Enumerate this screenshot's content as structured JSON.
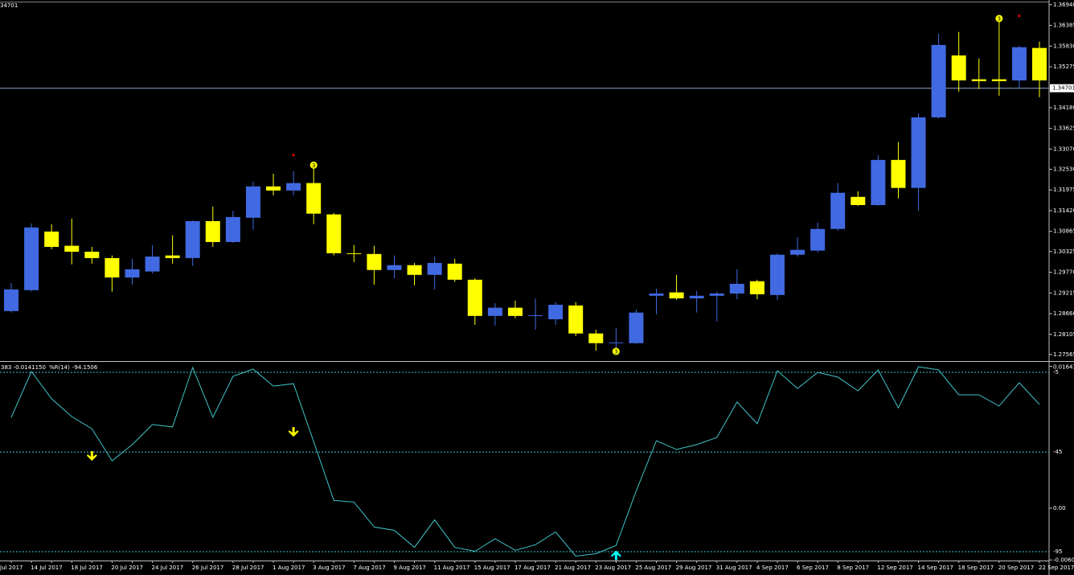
{
  "chart_data": [
    {
      "type": "candlestick",
      "header_text": "34701",
      "categories": [
        "Jul 2017",
        "14 Jul 2017",
        null,
        "18 Jul 2017",
        null,
        "20 Jul 2017",
        null,
        "24 Jul 2017",
        null,
        "26 Jul 2017",
        null,
        "28 Jul 2017",
        null,
        "1 Aug 2017",
        null,
        "3 Aug 2017",
        null,
        "7 Aug 2017",
        null,
        "9 Aug 2017",
        null,
        "11 Aug 2017",
        null,
        "15 Aug 2017",
        null,
        "17 Aug 2017",
        null,
        "21 Aug 2017",
        null,
        "23 Aug 2017",
        null,
        "25 Aug 2017",
        null,
        "29 Aug 2017",
        null,
        "31 Aug 2017",
        null,
        "4 Sep 2017",
        null,
        "6 Sep 2017",
        null,
        "8 Sep 2017",
        null,
        "12 Sep 2017",
        null,
        "14 Sep 2017",
        null,
        "18 Sep 2017",
        null,
        "20 Sep 2017",
        null,
        "22 Sep 2017"
      ],
      "open": [
        1.2873,
        1.2929,
        1.3086,
        1.3048,
        1.3032,
        1.3015,
        1.2963,
        1.2979,
        1.3022,
        1.3015,
        1.3114,
        1.3058,
        1.3123,
        1.3207,
        1.3196,
        1.3216,
        1.3132,
        1.3028,
        1.3026,
        1.2983,
        1.2996,
        1.297,
        1.3,
        1.2957,
        1.286,
        1.2882,
        1.286,
        1.2851,
        1.2888,
        1.2813,
        1.2787,
        1.2787,
        1.2914,
        1.2923,
        1.2907,
        1.2914,
        1.292,
        1.2953,
        1.2916,
        1.3024,
        1.3035,
        1.3093,
        1.3179,
        1.3157,
        1.3278,
        1.3203,
        1.3392,
        1.3558,
        1.3494,
        1.3494,
        1.3491,
        1.3578
      ],
      "high": [
        1.2948,
        1.3108,
        1.3106,
        1.3121,
        1.3045,
        1.3022,
        1.3013,
        1.305,
        1.3076,
        1.3116,
        1.3153,
        1.3142,
        1.322,
        1.3241,
        1.3248,
        1.3254,
        1.3136,
        1.305,
        1.3048,
        1.3022,
        1.3002,
        1.3019,
        1.3013,
        1.2961,
        1.2894,
        1.2901,
        1.2907,
        1.2897,
        1.2897,
        1.2823,
        1.2828,
        1.2877,
        1.2933,
        1.297,
        1.2927,
        1.2925,
        1.2985,
        1.2957,
        1.3028,
        1.3071,
        1.311,
        1.3216,
        1.3194,
        1.3291,
        1.3326,
        1.3403,
        1.3616,
        1.3621,
        1.355,
        1.366,
        1.3584,
        1.3595
      ],
      "low": [
        1.2869,
        1.2925,
        1.3039,
        1.2998,
        1.3,
        1.2925,
        1.2944,
        1.2974,
        1.3,
        1.2994,
        1.3045,
        1.3056,
        1.3091,
        1.3183,
        1.3183,
        1.3106,
        1.3022,
        1.3004,
        1.2944,
        1.2961,
        1.2942,
        1.2931,
        1.2951,
        1.2836,
        1.2834,
        1.2854,
        1.2823,
        1.2836,
        1.2806,
        1.2767,
        1.277,
        1.2785,
        1.2864,
        1.2903,
        1.2869,
        1.2845,
        1.2905,
        1.2905,
        1.2903,
        1.3019,
        1.303,
        1.3088,
        1.3155,
        1.3155,
        1.3175,
        1.3142,
        1.3388,
        1.3461,
        1.3468,
        1.345,
        1.347,
        1.3446
      ],
      "close": [
        1.2931,
        1.3097,
        1.3045,
        1.3032,
        1.3015,
        1.2963,
        1.2985,
        1.3019,
        1.3015,
        1.3114,
        1.3058,
        1.3125,
        1.3207,
        1.3196,
        1.3216,
        1.3134,
        1.3028,
        1.3026,
        1.2983,
        1.2996,
        1.297,
        1.3002,
        1.2957,
        1.286,
        1.2882,
        1.286,
        1.2862,
        1.289,
        1.2813,
        1.2787,
        1.2789,
        1.2869,
        1.292,
        1.2907,
        1.2914,
        1.292,
        1.2946,
        1.2918,
        1.3024,
        1.3037,
        1.3093,
        1.319,
        1.3157,
        1.3278,
        1.3203,
        1.3392,
        1.3586,
        1.3491,
        1.3489,
        1.3489,
        1.358,
        1.3491
      ],
      "up_color": "#4169e1",
      "down_color": "#ffff00",
      "ylim": [
        1.2739,
        1.37
      ],
      "yticks": [
        {
          "value": 1.3694,
          "label": "1.36940"
        },
        1.36385,
        {
          "value": 1.3583,
          "label": "1.35830"
        },
        1.35275,
        {
          "value": 1.3418,
          "label": "1.34180"
        },
        1.33625,
        {
          "value": 1.3307,
          "label": "1.33070"
        },
        {
          "value": 1.3253,
          "label": "1.32530"
        },
        1.31975,
        {
          "value": 1.3142,
          "label": "1.31420"
        },
        1.30865,
        1.30325,
        {
          "value": 1.2977,
          "label": "1.29770"
        },
        1.29215,
        {
          "value": 1.2866,
          "label": "1.28660"
        },
        1.28105,
        1.27565
      ],
      "current_price": 1.34701,
      "signal_markers": {
        "label": "3",
        "color": "#ffff00",
        "values": [
          null,
          null,
          null,
          null,
          null,
          null,
          null,
          null,
          null,
          null,
          null,
          null,
          null,
          null,
          null,
          1.3264,
          null,
          null,
          null,
          null,
          null,
          null,
          null,
          null,
          null,
          null,
          null,
          null,
          null,
          null,
          1.2765,
          null,
          null,
          null,
          null,
          null,
          null,
          null,
          null,
          null,
          null,
          null,
          null,
          null,
          null,
          null,
          null,
          null,
          null,
          1.3657,
          null,
          null
        ]
      },
      "fractal_markers": {
        "color": "#ff0000",
        "values": [
          null,
          null,
          null,
          null,
          null,
          null,
          null,
          null,
          null,
          null,
          null,
          null,
          null,
          null,
          1.3291,
          null,
          null,
          null,
          null,
          null,
          null,
          null,
          null,
          null,
          null,
          null,
          null,
          null,
          null,
          null,
          null,
          null,
          null,
          null,
          null,
          null,
          null,
          null,
          null,
          null,
          null,
          null,
          null,
          null,
          null,
          null,
          null,
          null,
          null,
          null,
          1.3664,
          null
        ]
      }
    },
    {
      "type": "line",
      "header_prefix": "383 -0.0141150",
      "header_value": -94.1506,
      "series": [
        {
          "name": "%R(14)",
          "color": "#3fc4c8",
          "values": [
            -27.6,
            -4.6,
            -18.3,
            -27.2,
            -33.3,
            -49.4,
            -41.3,
            -31.2,
            -32.4,
            -2.6,
            -27.6,
            -7.0,
            -3.4,
            -11.9,
            -10.7,
            -39.8,
            -69.3,
            -70.1,
            -82.6,
            -84.3,
            -92.8,
            -79.0,
            -92.8,
            -94.8,
            -88.5,
            -94.3,
            -91.5,
            -85.1,
            -97.2,
            -96.0,
            -91.9,
            -64.5,
            -39.3,
            -43.7,
            -41.3,
            -37.7,
            -19.9,
            -30.8,
            -4.2,
            -13.1,
            -5.0,
            -7.4,
            -14.3,
            -3.8,
            -22.8,
            -2.2,
            -3.8,
            -16.3,
            -16.3,
            -21.9,
            -10.2,
            -21.1
          ]
        }
      ],
      "ylim": [
        -100,
        0
      ],
      "yticks": [
        -5,
        -45,
        -95
      ],
      "grid": true,
      "y2lim": [
        -0.0062,
        0.0169
      ],
      "y2ticks": [
        0.016432,
        {
          "value": 0,
          "label": "0.00"
        },
        -0.006002
      ],
      "arrow_down": {
        "color": "#ffff00",
        "values": [
          null,
          null,
          null,
          null,
          -47.4,
          null,
          null,
          null,
          null,
          null,
          null,
          null,
          null,
          null,
          -35.3,
          null,
          null,
          null,
          null,
          null,
          null,
          null,
          null,
          null,
          null,
          null,
          null,
          null,
          null,
          null,
          null,
          null,
          null,
          null,
          null,
          null,
          null,
          null,
          null,
          null,
          null,
          null,
          null,
          null,
          null,
          null,
          null,
          null,
          null,
          null,
          null,
          null
        ]
      },
      "arrow_up": {
        "color": "#00ffff",
        "values": [
          null,
          null,
          null,
          null,
          null,
          null,
          null,
          null,
          null,
          null,
          null,
          null,
          null,
          null,
          null,
          null,
          null,
          null,
          null,
          null,
          null,
          null,
          null,
          null,
          null,
          null,
          null,
          null,
          null,
          null,
          -96.4,
          null,
          null,
          null,
          null,
          null,
          null,
          null,
          null,
          null,
          null,
          null,
          null,
          null,
          null,
          null,
          null,
          null,
          null,
          null,
          null,
          null
        ]
      }
    }
  ]
}
